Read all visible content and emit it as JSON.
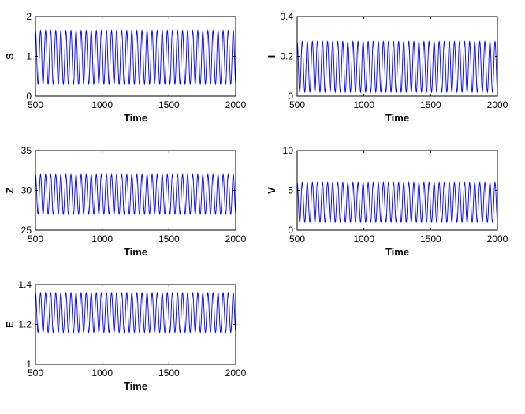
{
  "chart_data": [
    {
      "type": "line",
      "panel": "top-left",
      "xlabel": "Time",
      "ylabel": "S",
      "xlim": [
        500,
        2000
      ],
      "ylim": [
        0,
        2
      ],
      "xticks": [
        500,
        1000,
        1500,
        2000
      ],
      "yticks": [
        0,
        1,
        2
      ],
      "series_color": "#0000ff",
      "oscillation": {
        "period": 38,
        "max": 1.65,
        "min": 0.3,
        "x_start": 500,
        "x_end": 2000
      }
    },
    {
      "type": "line",
      "panel": "top-right",
      "xlabel": "Time",
      "ylabel": "I",
      "xlim": [
        500,
        2000
      ],
      "ylim": [
        0,
        0.4
      ],
      "xticks": [
        500,
        1000,
        1500,
        2000
      ],
      "yticks": [
        0,
        0.2,
        0.4
      ],
      "series_color": "#0000ff",
      "oscillation": {
        "period": 38,
        "max": 0.275,
        "min": 0.02,
        "x_start": 500,
        "x_end": 2000
      }
    },
    {
      "type": "line",
      "panel": "middle-left",
      "xlabel": "Time",
      "ylabel": "Z",
      "xlim": [
        500,
        2000
      ],
      "ylim": [
        25,
        35
      ],
      "xticks": [
        500,
        1000,
        1500,
        2000
      ],
      "yticks": [
        25,
        30,
        35
      ],
      "series_color": "#0000ff",
      "oscillation": {
        "period": 38,
        "max": 32,
        "min": 27,
        "x_start": 500,
        "x_end": 2000
      }
    },
    {
      "type": "line",
      "panel": "middle-right",
      "xlabel": "Time",
      "ylabel": "V",
      "xlim": [
        500,
        2000
      ],
      "ylim": [
        0,
        10
      ],
      "xticks": [
        500,
        1000,
        1500,
        2000
      ],
      "yticks": [
        0,
        5,
        10
      ],
      "series_color": "#0000ff",
      "oscillation": {
        "period": 38,
        "max": 6.0,
        "min": 1.0,
        "x_start": 500,
        "x_end": 2000
      }
    },
    {
      "type": "line",
      "panel": "bottom-left",
      "xlabel": "Time",
      "ylabel": "E",
      "xlim": [
        500,
        2000
      ],
      "ylim": [
        1,
        1.4
      ],
      "xticks": [
        500,
        1000,
        1500,
        2000
      ],
      "yticks": [
        1,
        1.2,
        1.4
      ],
      "series_color": "#0000ff",
      "oscillation": {
        "period": 38,
        "max": 1.36,
        "min": 1.16,
        "x_start": 500,
        "x_end": 2000
      }
    }
  ]
}
